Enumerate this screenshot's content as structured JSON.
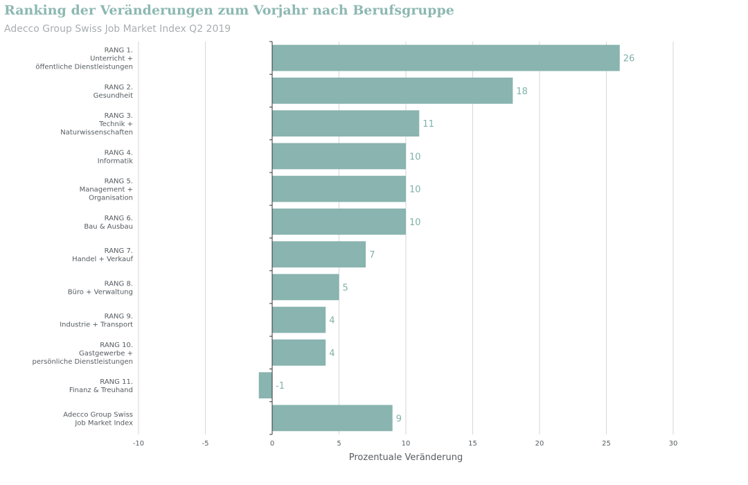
{
  "header": {
    "title": "Ranking der Veränderungen zum Vorjahr nach Berufsgruppe",
    "subtitle": "Adecco Group Swiss Job Market Index Q2 2019"
  },
  "colors": {
    "bar": "#89b4b0",
    "grid": "#d6d6d6",
    "axis": "#333333",
    "value_label": "#7fb1aa"
  },
  "chart_data": {
    "type": "bar",
    "orientation": "horizontal",
    "categories": [
      [
        "RANG 1.",
        "Unterricht +",
        "öffentliche Dienstleistungen"
      ],
      [
        "RANG 2.",
        "Gesundheit"
      ],
      [
        "RANG 3.",
        "Technik +",
        "Naturwissenschaften"
      ],
      [
        "RANG 4.",
        "Informatik"
      ],
      [
        "RANG 5.",
        "Management +",
        "Organisation"
      ],
      [
        "RANG 6.",
        "Bau & Ausbau"
      ],
      [
        "RANG 7.",
        "Handel + Verkauf"
      ],
      [
        "RANG 8.",
        "Büro + Verwaltung"
      ],
      [
        "RANG 9.",
        "Industrie + Transport"
      ],
      [
        "RANG 10.",
        "Gastgewerbe +",
        "persönliche Dienstleistungen"
      ],
      [
        "RANG 11.",
        "Finanz & Treuhand"
      ],
      [
        "Adecco Group Swiss",
        "Job Market Index"
      ]
    ],
    "values": [
      26,
      18,
      11,
      10,
      10,
      10,
      7,
      5,
      4,
      4,
      -1,
      9
    ],
    "value_labels": [
      "26",
      "18",
      "11",
      "10",
      "10",
      "10",
      "7",
      "5",
      "4",
      "4",
      "-1",
      "9"
    ],
    "xlabel": "Prozentuale Veränderung",
    "ylabel": "",
    "xlim": [
      -10,
      30
    ],
    "xticks": [
      -10,
      -5,
      0,
      5,
      10,
      15,
      20,
      25,
      30
    ],
    "xtick_labels": [
      "-10",
      "-5",
      "0",
      "5",
      "10",
      "15",
      "20",
      "25",
      "30"
    ],
    "grid": "vertical",
    "legend": "none"
  }
}
